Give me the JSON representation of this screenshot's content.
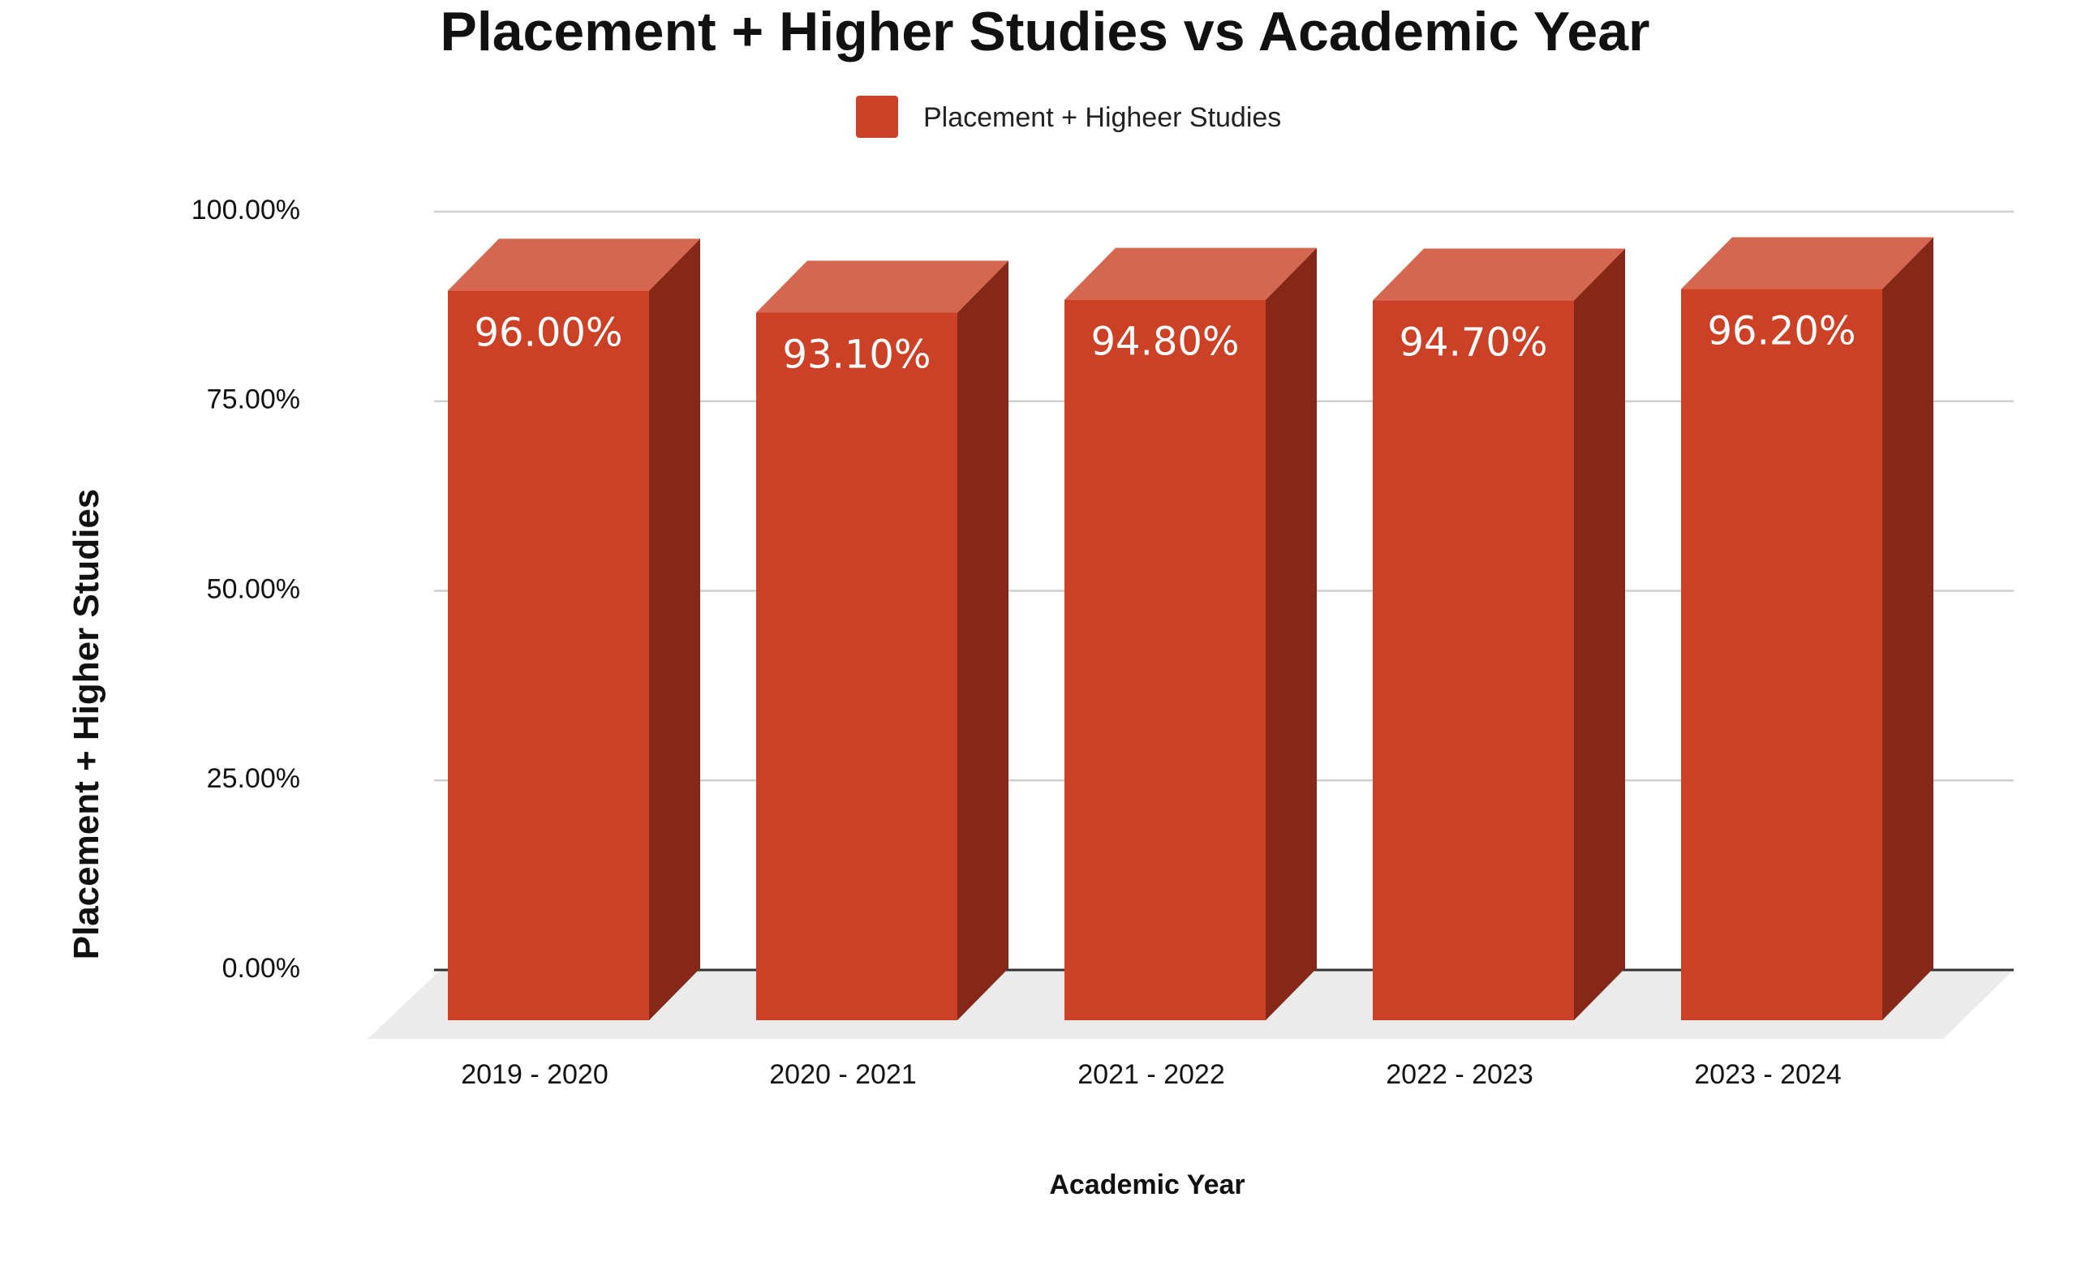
{
  "chart_data": {
    "type": "bar",
    "title": "Placement + Higher Studies vs Academic Year",
    "xlabel": "Academic Year",
    "ylabel": "Placement + Higher Studies",
    "categories": [
      "2019 - 2020",
      "2020 - 2021",
      "2021 - 2022",
      "2022 - 2023",
      "2023 - 2024"
    ],
    "series": [
      {
        "name": "Placement + Higheer Studies",
        "values": [
          96.0,
          93.1,
          94.8,
          94.7,
          96.2
        ],
        "color": "#cc4125"
      }
    ],
    "data_labels": [
      "96.00%",
      "93.10%",
      "94.80%",
      "94.70%",
      "96.20%"
    ],
    "y_ticks": [
      0,
      25,
      50,
      75,
      100
    ],
    "y_tick_labels": [
      "0.00%",
      "25.00%",
      "50.00%",
      "75.00%",
      "100.00%"
    ],
    "ylim": [
      0,
      100
    ],
    "grid": true,
    "legend_position": "top-center",
    "style": "3d-bar",
    "colors": {
      "bar_front": "#cc4125",
      "bar_top": "#d56650",
      "bar_side": "#852818",
      "floor": "#ebebeb",
      "grid": "#cfcfcf"
    }
  }
}
